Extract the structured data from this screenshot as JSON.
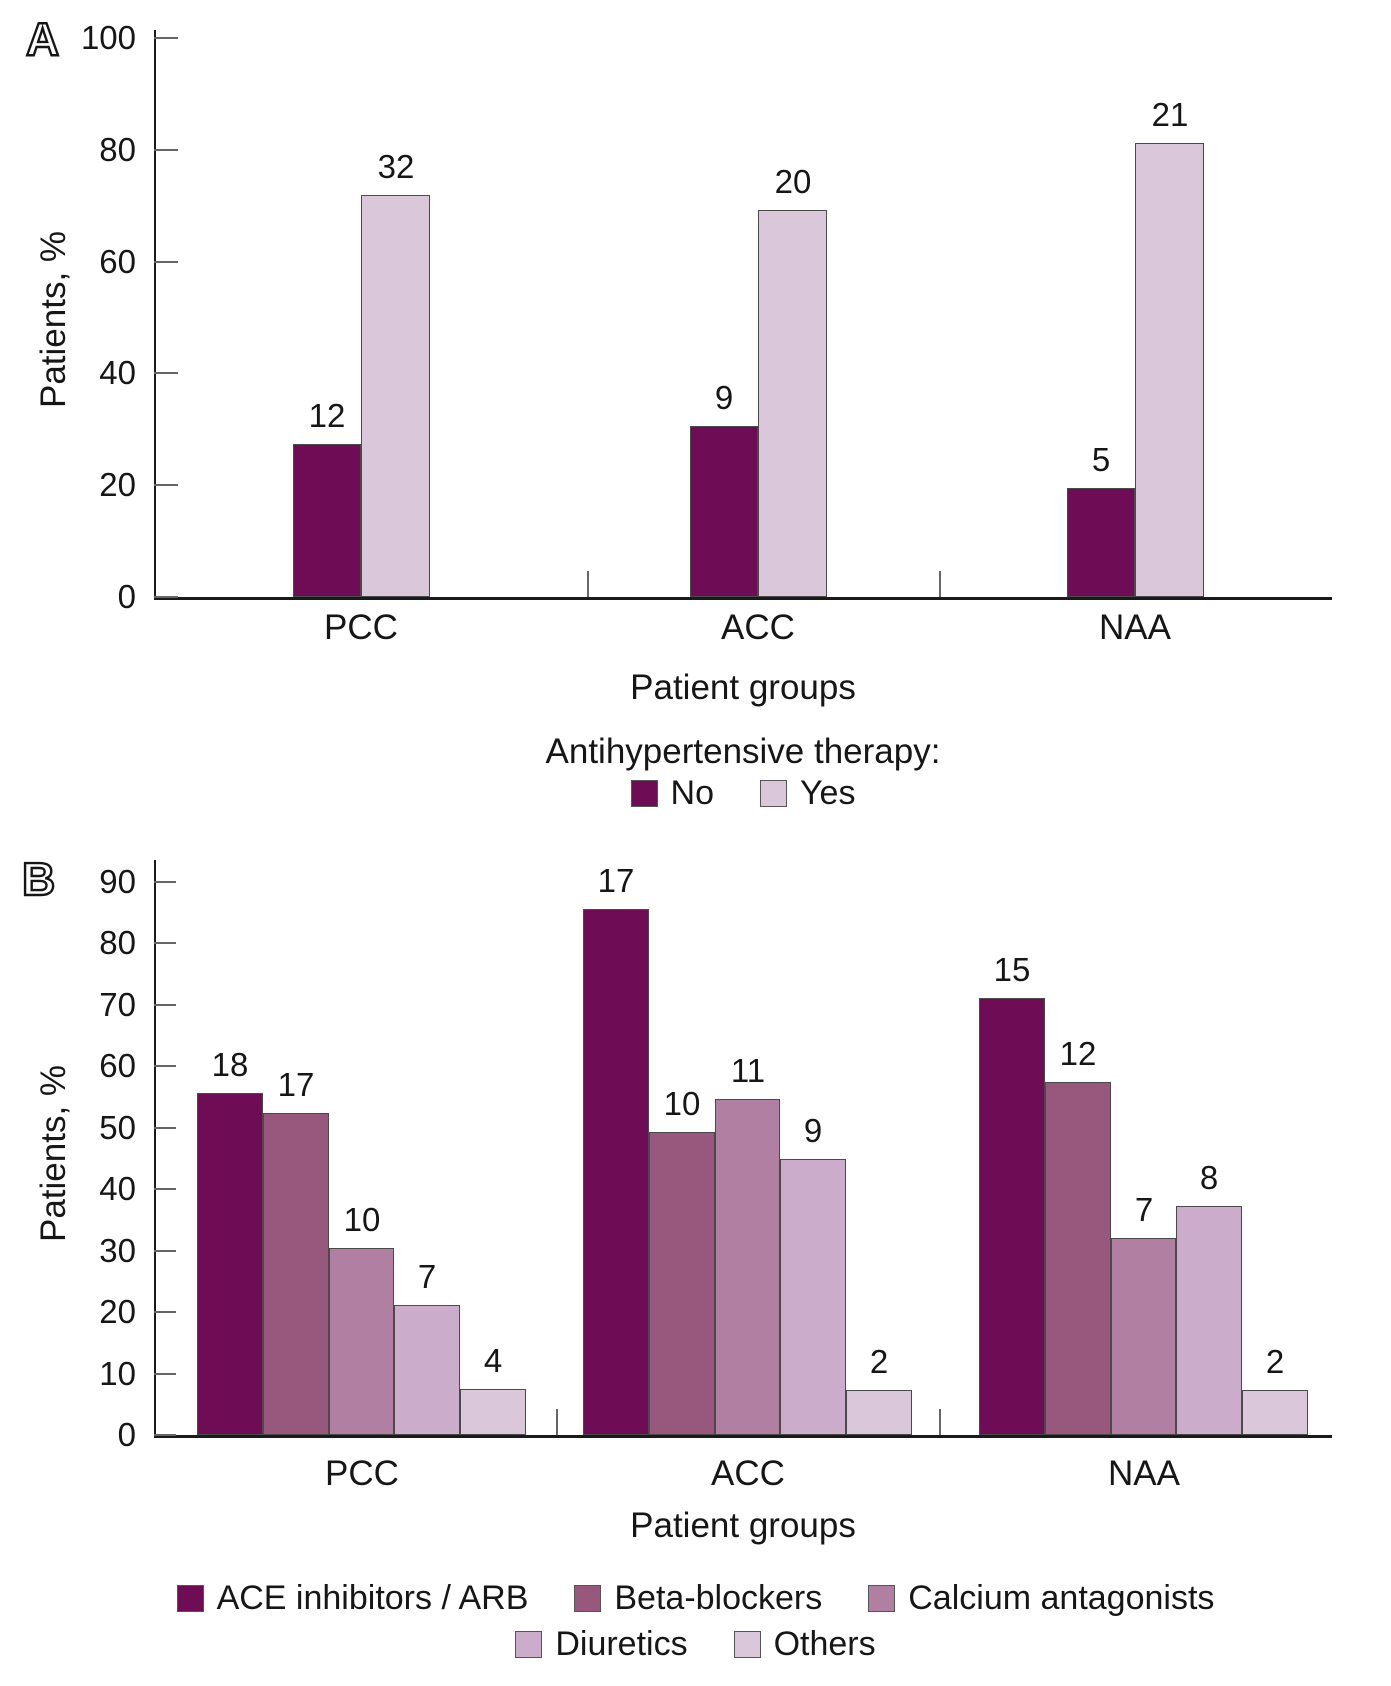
{
  "chart_data": [
    {
      "type": "bar",
      "panel_marker": "A",
      "ylabel": "Patients, %",
      "xlabel": "Patient groups",
      "ylim": [
        0,
        100
      ],
      "yticks": [
        0,
        20,
        40,
        60,
        80,
        100
      ],
      "categories": [
        "PCC",
        "ACC",
        "NAA"
      ],
      "legend_title": "Antihypertensive therapy:",
      "legend_position": "bottom",
      "grid": false,
      "bar_label_meaning": "patient counts shown above bars; bar heights are percent of group",
      "series": [
        {
          "name": "No",
          "color": "#6E0D56",
          "bar_labels": [
            "12",
            "9",
            "5"
          ],
          "values_pct": [
            27.4,
            30.6,
            19.5
          ]
        },
        {
          "name": "Yes",
          "color": "#DAC7DA",
          "bar_labels": [
            "32",
            "20",
            "21"
          ],
          "values_pct": [
            71.9,
            69.2,
            81.2
          ]
        }
      ]
    },
    {
      "type": "bar",
      "panel_marker": "B",
      "ylabel": "Patients, %",
      "xlabel": "Patient groups",
      "ylim": [
        0,
        90
      ],
      "yticks": [
        0,
        10,
        20,
        30,
        40,
        50,
        60,
        70,
        80,
        90
      ],
      "categories": [
        "PCC",
        "ACC",
        "NAA"
      ],
      "legend_title": "",
      "legend_position": "bottom",
      "grid": false,
      "bar_label_meaning": "patient counts shown above bars; bar heights are percent of group",
      "series": [
        {
          "name": "ACE inhibitors / ARB",
          "color": "#6E0D56",
          "bar_labels": [
            "18",
            "17",
            "15"
          ],
          "values_pct": [
            55.6,
            85.5,
            71.1
          ]
        },
        {
          "name": "Beta-blockers",
          "color": "#98587E",
          "bar_labels": [
            "17",
            "10",
            "12"
          ],
          "values_pct": [
            52.4,
            49.3,
            57.4
          ]
        },
        {
          "name": "Calcium antagonists",
          "color": "#B07FA2",
          "bar_labels": [
            "10",
            "11",
            "7"
          ],
          "values_pct": [
            30.4,
            54.6,
            32.0
          ]
        },
        {
          "name": "Diuretics",
          "color": "#CBADCB",
          "bar_labels": [
            "7",
            "9",
            "8"
          ],
          "values_pct": [
            21.1,
            44.9,
            37.2
          ]
        },
        {
          "name": "Others",
          "color": "#DAC7DA",
          "bar_labels": [
            "4",
            "2",
            "2"
          ],
          "values_pct": [
            7.5,
            7.3,
            7.3
          ]
        }
      ]
    }
  ],
  "colors": {
    "background": "#FFFFFF",
    "text": "#161616",
    "axis": "#1A1A1A",
    "tick": "#666666",
    "bar_border": "#4A4A4A",
    "series_no_ace": "#6E0D56",
    "series_beta_blockers": "#98587E",
    "series_calcium_antagonists": "#B07FA2",
    "series_diuretics": "#CBADCB",
    "series_yes_others": "#DAC7DA"
  }
}
